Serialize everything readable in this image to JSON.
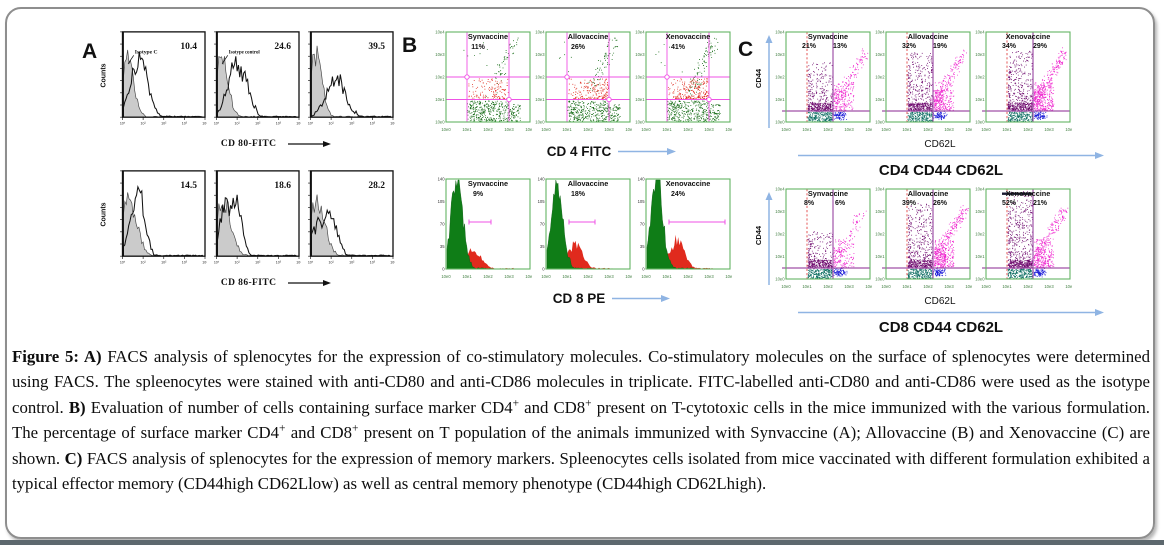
{
  "colors": {
    "frame_border": "#8e8e8e",
    "bottom_bar": "#5d686e",
    "box_green": "#63b563",
    "tick_green": "#3f7d3f",
    "dot_green": "#156b15",
    "dot_red": "#e02a1d",
    "gate_magenta": "#ef52e5",
    "dot_purple": "#6e0a6e",
    "dot_pink": "#ef25cf",
    "dot_teal": "#0e6e63",
    "dot_blue": "#1f1fd9",
    "gate_purple": "#a052a8",
    "gate_red": "#e03030",
    "arrow_blue": "#8fb4e3",
    "hist_gray": "#cbcbcb"
  },
  "panels": {
    "a": {
      "label": "A",
      "y_axis_label": "Counts",
      "x_ticks": [
        "10⁰",
        "10¹",
        "10²",
        "10³",
        "10⁴"
      ],
      "rows": [
        {
          "x_axis_label": "CD 80-FITC",
          "plots": [
            {
              "value": "10.4",
              "annotation": "Isotype C"
            },
            {
              "value": "24.6",
              "annotation": "Isotype control"
            },
            {
              "value": "39.5",
              "annotation": ""
            }
          ]
        },
        {
          "x_axis_label": "CD 86-FITC",
          "plots": [
            {
              "value": "14.5",
              "annotation": ""
            },
            {
              "value": "18.6",
              "annotation": ""
            },
            {
              "value": "28.2",
              "annotation": ""
            }
          ]
        }
      ]
    },
    "b": {
      "label": "B",
      "ticks": [
        "10e0",
        "10e1",
        "10e2",
        "10e3",
        "10e4"
      ],
      "hist_y_ticks": [
        "0",
        "35",
        "70",
        "105",
        "140"
      ],
      "rows": [
        {
          "x_axis_label": "CD 4 FITC",
          "kind": "scatter",
          "plots": [
            {
              "title": "Synvaccine",
              "pct": "11%"
            },
            {
              "title": "Allovaccine",
              "pct": "26%"
            },
            {
              "title": "Xenovaccine",
              "pct": "41%"
            }
          ]
        },
        {
          "x_axis_label": "CD 8 PE",
          "kind": "hist",
          "plots": [
            {
              "title": "Synvaccine",
              "pct": "9%"
            },
            {
              "title": "Allovaccine",
              "pct": "18%"
            },
            {
              "title": "Xenovaccine",
              "pct": "24%"
            }
          ]
        }
      ]
    },
    "c": {
      "label": "C",
      "y_axis_label": "CD44",
      "x_axis_label": "CD62L",
      "ticks": [
        "10e0",
        "10e1",
        "10e2",
        "10e3",
        "10e4"
      ],
      "rows": [
        {
          "group_label": "CD4 CD44 CD62L",
          "plots": [
            {
              "title": "Synvaccine",
              "left_pct": "21%",
              "right_pct": "13%"
            },
            {
              "title": "Allovaccine",
              "left_pct": "32%",
              "right_pct": "19%"
            },
            {
              "title": "Xenovaccine",
              "left_pct": "34%",
              "right_pct": "29%"
            }
          ]
        },
        {
          "group_label": "CD8 CD44 CD62L",
          "plots": [
            {
              "title": "Synvaccine",
              "left_pct": "8%",
              "right_pct": "6%"
            },
            {
              "title": "Allovaccine",
              "left_pct": "39%",
              "right_pct": "26%"
            },
            {
              "title": "Xenovaccine",
              "left_pct": "52%",
              "right_pct": "21%",
              "marker": true
            }
          ]
        }
      ]
    }
  },
  "caption": {
    "segments": [
      {
        "text": "Figure 5: ",
        "bold": true
      },
      {
        "text": "A)",
        "bold": true
      },
      {
        "text": " FACS analysis of splenocytes for the expression of co-stimulatory molecules. Co-stimulatory molecules on the surface of splenocytes were determined using FACS. The spleenocytes were stained with anti-CD80 and anti-CD86 molecules in triplicate. FITC-labelled anti-CD80 and anti-CD86 were used as the isotype control. "
      },
      {
        "text": "B)",
        "bold": true
      },
      {
        "text": " Evaluation of number of cells containing surface marker CD4"
      },
      {
        "text": "+",
        "sup": true
      },
      {
        "text": " and CD8"
      },
      {
        "text": "+",
        "sup": true
      },
      {
        "text": " present on T-cytotoxic cells in the mice immunized with the various formulation. The percentage of surface marker CD4"
      },
      {
        "text": "+",
        "sup": true
      },
      {
        "text": " and CD8"
      },
      {
        "text": "+",
        "sup": true
      },
      {
        "text": " present on T population of the animals immunized with Synvaccine (A); Allovaccine (B) and Xenovaccine (C) are shown. "
      },
      {
        "text": "C)",
        "bold": true
      },
      {
        "text": " FACS analysis of splenocytes for the expression of memory markers. Spleenocytes cells isolated from mice vaccinated with different formulation exhibited a typical effector memory (CD44high CD62Llow) as well as central memory phenotype (CD44high CD62Lhigh)."
      }
    ]
  }
}
